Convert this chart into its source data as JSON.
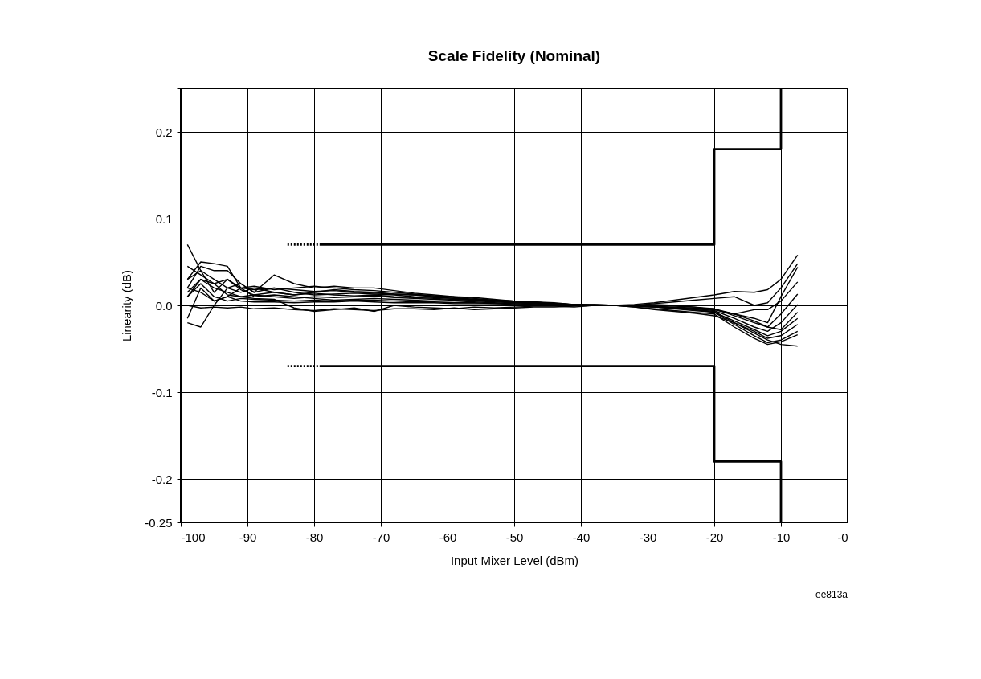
{
  "chart_data": {
    "type": "line",
    "title": "Scale Fidelity (Nominal)",
    "xlabel": "Input Mixer Level (dBm)",
    "ylabel": "Linearity (dB)",
    "annotations": [
      "ee813a"
    ],
    "x": [
      -99,
      -97,
      -95,
      -93,
      -91,
      -89,
      -86,
      -83,
      -80,
      -77,
      -74,
      -71,
      -68,
      -65,
      -62,
      -59,
      -56,
      -53,
      -50,
      -47,
      -44,
      -41,
      -38,
      -35,
      -32,
      -29,
      -26,
      -23,
      -20,
      -17,
      -14,
      -12,
      -10,
      -7.5
    ],
    "series": [
      {
        "color": "#000000",
        "values": [
          0.07,
          0.04,
          0.03,
          0.02,
          0.015,
          0.02,
          0.015,
          0.012,
          0.015,
          0.018,
          0.016,
          0.015,
          0.013,
          0.012,
          0.01,
          0.008,
          0.007,
          0.005,
          0.004,
          0.003,
          0.002,
          0.001,
          0.001,
          0,
          0.001,
          0.003,
          0.006,
          0.009,
          0.012,
          0.016,
          0.015,
          0.018,
          0.03,
          0.058
        ]
      },
      {
        "color": "#000000",
        "values": [
          0.03,
          0.05,
          0.048,
          0.045,
          0.02,
          0.022,
          0.018,
          0.02,
          0.022,
          0.02,
          0.018,
          0.017,
          0.015,
          0.013,
          0.011,
          0.01,
          0.008,
          0.006,
          0.005,
          0.004,
          0.002,
          0.001,
          0.001,
          0,
          0,
          0.002,
          0.004,
          0.006,
          0.008,
          0.01,
          0.0,
          0.003,
          0.02,
          0.048
        ]
      },
      {
        "color": "#000000",
        "values": [
          -0.02,
          -0.025,
          0.0,
          0.02,
          0.025,
          0.015,
          0.02,
          0.015,
          0.012,
          0.013,
          0.014,
          0.013,
          0.012,
          0.01,
          0.009,
          0.008,
          0.006,
          0.005,
          0.004,
          0.003,
          0.002,
          0.001,
          0,
          0,
          0,
          0.001,
          0.0,
          -0.002,
          -0.005,
          -0.01,
          -0.015,
          -0.02,
          0.01,
          0.044
        ]
      },
      {
        "color": "#000000",
        "values": [
          0.02,
          0.045,
          0.04,
          0.04,
          0.025,
          0.015,
          0.035,
          0.025,
          0.02,
          0.022,
          0.02,
          0.02,
          0.017,
          0.014,
          0.012,
          0.01,
          0.009,
          0.007,
          0.005,
          0.004,
          0.003,
          0.001,
          0,
          0,
          -0.001,
          -0.002,
          -0.003,
          -0.004,
          -0.005,
          -0.01,
          -0.005,
          -0.005,
          0.005,
          0.027
        ]
      },
      {
        "color": "#000000",
        "values": [
          0.01,
          0.03,
          0.02,
          0.015,
          0.01,
          0.012,
          0.01,
          0.008,
          0.01,
          0.009,
          0.01,
          0.011,
          0.009,
          0.008,
          0.007,
          0.006,
          0.005,
          0.004,
          0.003,
          0.002,
          0.001,
          0.001,
          0,
          0,
          0,
          -0.001,
          -0.002,
          -0.003,
          -0.004,
          -0.012,
          -0.02,
          -0.025,
          -0.01,
          0.013
        ]
      },
      {
        "color": "#000000",
        "values": [
          -0.015,
          0.02,
          0.005,
          0.01,
          0.02,
          0.01,
          0.012,
          0.01,
          0.008,
          0.006,
          0.007,
          0.008,
          0.007,
          0.006,
          0.005,
          0.005,
          0.004,
          0.003,
          0.002,
          0.002,
          0.001,
          0,
          0,
          0,
          0,
          -0.001,
          -0.003,
          -0.004,
          -0.006,
          -0.015,
          -0.025,
          -0.03,
          -0.02,
          0.001
        ]
      },
      {
        "color": "#000000",
        "values": [
          0.045,
          0.035,
          0.025,
          0.03,
          0.02,
          0.018,
          0.02,
          0.018,
          0.016,
          0.017,
          0.015,
          0.014,
          0.013,
          0.012,
          0.011,
          0.009,
          0.007,
          0.006,
          0.005,
          0.004,
          0.002,
          0.001,
          0,
          0,
          0,
          0,
          -0.001,
          -0.002,
          -0.004,
          -0.01,
          -0.018,
          -0.025,
          -0.028,
          -0.008
        ]
      },
      {
        "color": "#000000",
        "values": [
          0.01,
          0.025,
          0.01,
          0.005,
          0.008,
          0.007,
          0.006,
          0.005,
          0.006,
          0.005,
          0.006,
          0.006,
          0.005,
          0.004,
          0.004,
          0.003,
          0.003,
          0.002,
          0.002,
          0.001,
          0.001,
          0,
          0,
          0,
          -0.001,
          -0.002,
          -0.004,
          -0.006,
          -0.008,
          -0.018,
          -0.028,
          -0.035,
          -0.03,
          -0.015
        ]
      },
      {
        "color": "#000000",
        "values": [
          0.03,
          0.04,
          0.015,
          0.03,
          0.018,
          0.012,
          0.015,
          0.012,
          0.014,
          0.012,
          0.011,
          0.012,
          0.01,
          0.009,
          0.008,
          0.007,
          0.006,
          0.005,
          0.004,
          0.003,
          0.002,
          0.001,
          0,
          0,
          0,
          -0.001,
          -0.003,
          -0.005,
          -0.007,
          -0.02,
          -0.03,
          -0.038,
          -0.035,
          -0.022
        ]
      },
      {
        "color": "#000000",
        "values": [
          0.02,
          0.015,
          0.005,
          0.01,
          0.005,
          0.004,
          0.004,
          0.003,
          0.004,
          0.004,
          0.005,
          0.004,
          0.003,
          0.003,
          0.003,
          0.002,
          0.002,
          0.002,
          0.001,
          0.001,
          0,
          0,
          0,
          0,
          -0.001,
          -0.002,
          -0.003,
          -0.005,
          -0.008,
          -0.022,
          -0.035,
          -0.043,
          -0.04,
          -0.03
        ]
      },
      {
        "color": "#000000",
        "values": [
          0.0,
          -0.003,
          -0.002,
          -0.003,
          -0.002,
          -0.004,
          -0.003,
          -0.005,
          -0.006,
          -0.004,
          -0.005,
          -0.006,
          -0.004,
          -0.004,
          -0.005,
          -0.003,
          -0.005,
          -0.004,
          -0.003,
          -0.002,
          -0.002,
          -0.001,
          0,
          0,
          -0.002,
          -0.004,
          -0.006,
          -0.008,
          -0.01,
          -0.025,
          -0.038,
          -0.045,
          -0.042,
          -0.034
        ]
      },
      {
        "color": "#000000",
        "values": [
          0.015,
          0.03,
          0.025,
          0.012,
          0.01,
          0.008,
          0.007,
          -0.003,
          -0.007,
          -0.005,
          -0.003,
          -0.007,
          0.0,
          -0.002,
          -0.003,
          -0.004,
          -0.002,
          -0.003,
          -0.002,
          -0.001,
          -0.001,
          -0.002,
          0,
          0,
          -0.002,
          -0.005,
          -0.007,
          -0.009,
          -0.012,
          -0.02,
          -0.032,
          -0.04,
          -0.045,
          -0.047
        ]
      },
      {
        "color": "#000000",
        "x": [
          -79,
          -20,
          -20,
          -10,
          -10
        ],
        "values": [
          0.07,
          0.07,
          0.18,
          0.18,
          0.25
        ]
      },
      {
        "color": "#000000",
        "x": [
          -84,
          -79
        ],
        "values": [
          0.07,
          0.07
        ],
        "line_style": "dotted"
      },
      {
        "color": "#000000",
        "x": [
          -79,
          -20,
          -20,
          -10,
          -10
        ],
        "values": [
          -0.07,
          -0.07,
          -0.18,
          -0.18,
          -0.25
        ]
      },
      {
        "color": "#000000",
        "x": [
          -84,
          -79
        ],
        "values": [
          -0.07,
          -0.07
        ],
        "line_style": "dotted"
      }
    ],
    "xlim": [
      -100,
      0
    ],
    "xticks": [
      -100,
      -90,
      -80,
      -70,
      -60,
      -50,
      -40,
      -30,
      -20,
      -10,
      {
        "value": 0,
        "label": "-0"
      }
    ],
    "ylim": [
      -0.25,
      0.25
    ],
    "yticks": [
      -0.25,
      -0.2,
      -0.1,
      {
        "value": 0,
        "label": "0.0"
      },
      0.1,
      0.2,
      {
        "value": 0.25,
        "label": null
      }
    ],
    "grid": true,
    "marker": "none",
    "line_style": "solid"
  }
}
